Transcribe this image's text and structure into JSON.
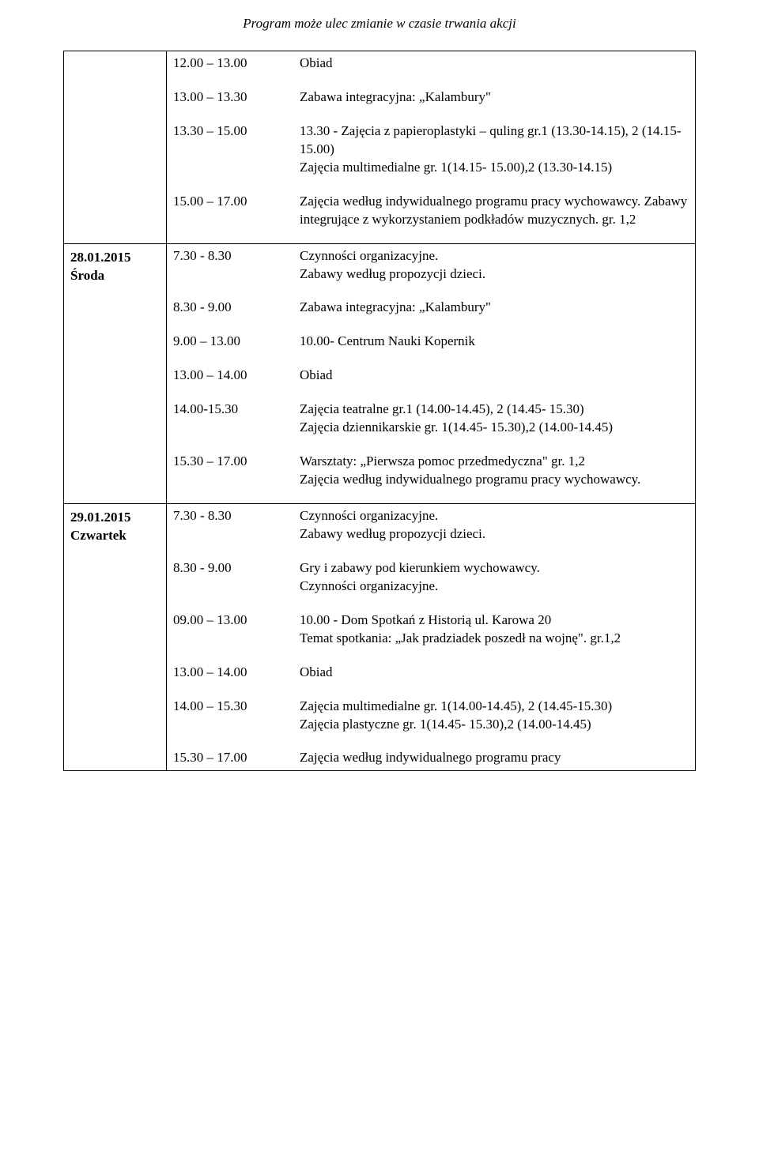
{
  "header": "Program może ulec zmianie w czasie trwania akcji",
  "section1": {
    "rows": [
      {
        "time": "12.00 – 13.00",
        "desc": "Obiad"
      },
      {
        "time": "13.00 – 13.30",
        "desc": "Zabawa integracyjna: „Kalambury\""
      },
      {
        "time": "13.30 – 15.00",
        "desc": "13.30 - Zajęcia z papieroplastyki – quling gr.1 (13.30-14.15), 2 (14.15- 15.00)\nZajęcia multimedialne gr. 1(14.15- 15.00),2 (13.30-14.15)"
      },
      {
        "time": "15.00 – 17.00",
        "desc": "Zajęcia według indywidualnego programu pracy wychowawcy. Zabawy integrujące z wykorzystaniem podkładów muzycznych. gr. 1,2"
      }
    ]
  },
  "section2": {
    "date": "28.01.2015",
    "day": "Środa",
    "rows": [
      {
        "time": "7.30 - 8.30",
        "desc": "Czynności organizacyjne.\nZabawy według propozycji dzieci."
      },
      {
        "time": "8.30 - 9.00",
        "desc": "Zabawa integracyjna: „Kalambury\""
      },
      {
        "time": "9.00 – 13.00",
        "desc": "10.00- Centrum Nauki Kopernik"
      },
      {
        "time": "13.00 – 14.00",
        "desc": "Obiad"
      },
      {
        "time": "14.00-15.30",
        "desc": "Zajęcia teatralne gr.1 (14.00-14.45), 2 (14.45- 15.30)\nZajęcia dziennikarskie gr. 1(14.45- 15.30),2 (14.00-14.45)"
      },
      {
        "time": "15.30 – 17.00",
        "desc": "Warsztaty: „Pierwsza pomoc przedmedyczna\" gr. 1,2\nZajęcia według indywidualnego programu pracy wychowawcy."
      }
    ]
  },
  "section3": {
    "date": "29.01.2015",
    "day": "Czwartek",
    "rows": [
      {
        "time": "7.30 - 8.30",
        "desc": "Czynności organizacyjne.\nZabawy według propozycji dzieci."
      },
      {
        "time": "8.30 - 9.00",
        "desc": "Gry i zabawy pod kierunkiem wychowawcy.\nCzynności organizacyjne."
      },
      {
        "time": "09.00 – 13.00",
        "desc": "10.00 - Dom Spotkań z Historią ul. Karowa 20\nTemat spotkania: „Jak pradziadek poszedł na wojnę\". gr.1,2"
      },
      {
        "time": "13.00 – 14.00",
        "desc": "Obiad"
      },
      {
        "time": "14.00 – 15.30",
        "desc": "Zajęcia multimedialne gr. 1(14.00-14.45), 2 (14.45-15.30)\nZajęcia plastyczne gr. 1(14.45- 15.30),2 (14.00-14.45)"
      },
      {
        "time": "15.30 – 17.00",
        "desc": "Zajęcia według indywidualnego programu pracy"
      }
    ]
  }
}
